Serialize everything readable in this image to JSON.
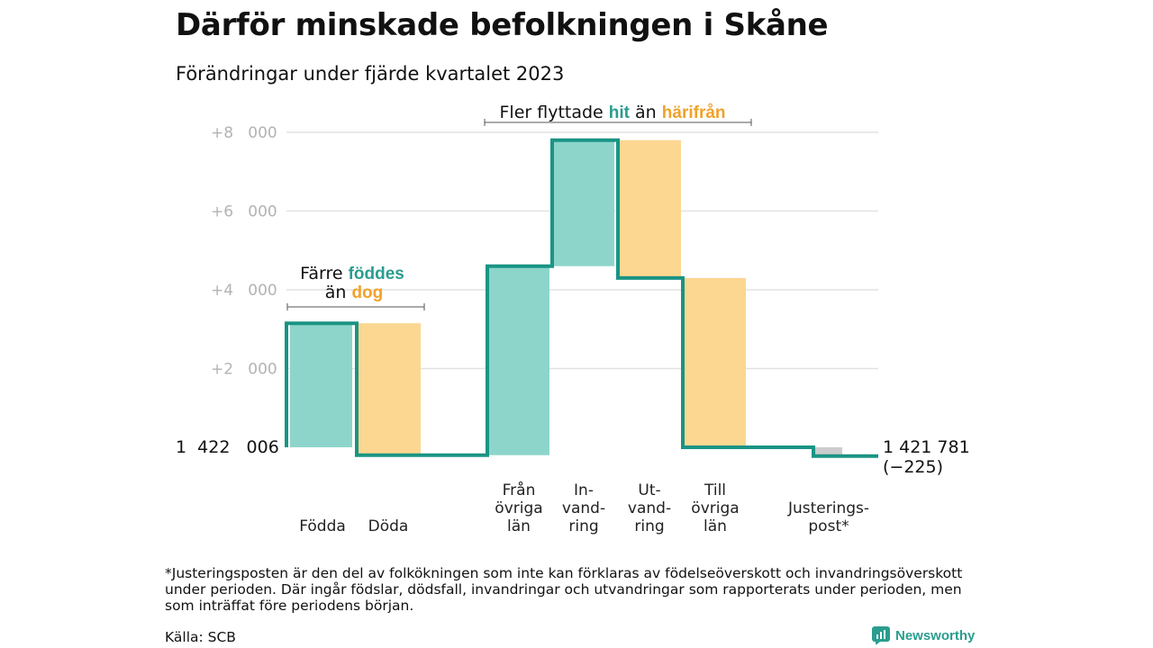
{
  "title": "Därför minskade befolkningen i Skåne",
  "subtitle": "Förändringar under fjärde kvartalet 2023",
  "footnote": "*Justeringsposten är den del av folkökningen som inte kan förklaras av födelseöverskott och invandringsöverskott under perioden. Där ingår födslar, dödsfall, invandringar och utvandringar som rapporterats under perioden, men som inträffat före periodens början.",
  "source": "Källa: SCB",
  "brand": "Newsworthy",
  "colors": {
    "increase": "#8dd5cb",
    "decrease": "#fcd791",
    "adjustment": "#cccccc",
    "line": "#1a9484",
    "highlight_teal": "#2a9d8f",
    "highlight_orange": "#f0a22b",
    "grid": "#e2e2e2",
    "tick_text": "#b3b3b3"
  },
  "annotations": {
    "birth_death": {
      "line1_prefix": "Färre ",
      "line1_highlight": "föddes",
      "line2_prefix": "än ",
      "line2_highlight": "dog"
    },
    "migration": {
      "prefix": "Fler flyttade ",
      "highlight1": "hit",
      "middle": " än ",
      "highlight2": "härifrån"
    }
  },
  "chart_data": {
    "type": "waterfall",
    "baseline_label": "1  422   006",
    "baseline_value": 1422006,
    "end_label": "1 421 781",
    "end_change_label": "(−225)",
    "end_value": 1421781,
    "net_change": -225,
    "y_ticks": [
      {
        "value": 2000,
        "label": "+2   000"
      },
      {
        "value": 4000,
        "label": "+4   000"
      },
      {
        "value": 6000,
        "label": "+6   000"
      },
      {
        "value": 8000,
        "label": "+8   000"
      }
    ],
    "ylim": [
      -600,
      8200
    ],
    "grid": true,
    "components": [
      {
        "label_lines": [
          "Födda"
        ],
        "start": 0,
        "end": 3150,
        "kind": "increase"
      },
      {
        "label_lines": [
          "Döda"
        ],
        "start": 3150,
        "end": -200,
        "kind": "decrease"
      },
      {
        "label_lines": [
          "Från",
          "övriga",
          "län"
        ],
        "start": -200,
        "end": 4600,
        "kind": "increase"
      },
      {
        "label_lines": [
          "In-",
          "vand-",
          "ring"
        ],
        "start": 4600,
        "end": 7800,
        "kind": "increase"
      },
      {
        "label_lines": [
          "Ut-",
          "vand-",
          "ring"
        ],
        "start": 7800,
        "end": 4300,
        "kind": "decrease"
      },
      {
        "label_lines": [
          "Till",
          "övriga",
          "län"
        ],
        "start": 4300,
        "end": 0,
        "kind": "decrease"
      },
      {
        "label_lines": [
          "Justerings-",
          "post*"
        ],
        "start": 0,
        "end": -225,
        "kind": "adjustment"
      }
    ]
  }
}
